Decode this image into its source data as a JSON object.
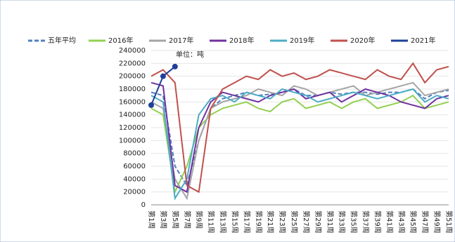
{
  "chart_data": {
    "type": "line",
    "unit_label": "单位：吨",
    "categories": [
      "第1周",
      "第3周",
      "第5周",
      "第7周",
      "第9周",
      "第11周",
      "第13周",
      "第15周",
      "第17周",
      "第19周",
      "第21周",
      "第23周",
      "第25周",
      "第27周",
      "第29周",
      "第31周",
      "第33周",
      "第35周",
      "第37周",
      "第39周",
      "第41周",
      "第43周",
      "第45周",
      "第47周",
      "第49周",
      "第51周"
    ],
    "ylim": [
      0,
      240000
    ],
    "yticks": [
      0,
      20000,
      40000,
      60000,
      80000,
      100000,
      120000,
      140000,
      160000,
      180000,
      200000,
      220000,
      240000
    ],
    "grid": true,
    "series": [
      {
        "name": "五年平均",
        "color": "#4f81bd",
        "dashed": true,
        "values": [
          175000,
          170000,
          60000,
          30000,
          100000,
          150000,
          165000,
          170000,
          175000,
          170000,
          172000,
          175000,
          180000,
          170000,
          170000,
          175000,
          172000,
          175000,
          175000,
          172000,
          175000,
          175000,
          180000,
          165000,
          175000,
          178000
        ]
      },
      {
        "name": "2016年",
        "color": "#92d050",
        "values": [
          150000,
          140000,
          20000,
          60000,
          120000,
          140000,
          150000,
          155000,
          160000,
          150000,
          145000,
          160000,
          165000,
          150000,
          155000,
          160000,
          150000,
          160000,
          165000,
          150000,
          155000,
          160000,
          170000,
          150000,
          155000,
          160000
        ]
      },
      {
        "name": "2017年",
        "color": "#a5a5a5",
        "values": [
          160000,
          150000,
          40000,
          10000,
          100000,
          150000,
          160000,
          165000,
          170000,
          180000,
          175000,
          170000,
          185000,
          180000,
          170000,
          175000,
          180000,
          185000,
          170000,
          175000,
          180000,
          185000,
          190000,
          170000,
          175000,
          180000
        ]
      },
      {
        "name": "2018年",
        "color": "#7030a0",
        "values": [
          190000,
          185000,
          30000,
          20000,
          120000,
          160000,
          175000,
          170000,
          165000,
          160000,
          170000,
          175000,
          180000,
          165000,
          170000,
          175000,
          160000,
          170000,
          180000,
          175000,
          170000,
          160000,
          155000,
          150000,
          165000,
          170000
        ]
      },
      {
        "name": "2019年",
        "color": "#4bacc6",
        "values": [
          170000,
          160000,
          10000,
          40000,
          140000,
          165000,
          170000,
          160000,
          175000,
          170000,
          165000,
          180000,
          175000,
          170000,
          160000,
          165000,
          170000,
          175000,
          170000,
          165000,
          170000,
          175000,
          180000,
          160000,
          170000,
          165000
        ]
      },
      {
        "name": "2020年",
        "color": "#c0504d",
        "values": [
          200000,
          210000,
          190000,
          30000,
          20000,
          150000,
          180000,
          190000,
          200000,
          195000,
          210000,
          200000,
          205000,
          195000,
          200000,
          210000,
          205000,
          200000,
          195000,
          210000,
          200000,
          195000,
          220000,
          190000,
          210000,
          215000
        ]
      },
      {
        "name": "2021年",
        "color": "#1f3f99",
        "markers": true,
        "values": [
          155000,
          200000,
          215000,
          null,
          null,
          null,
          null,
          null,
          null,
          null,
          null,
          null,
          null,
          null,
          null,
          null,
          null,
          null,
          null,
          null,
          null,
          null,
          null,
          null,
          null,
          null
        ]
      }
    ]
  }
}
